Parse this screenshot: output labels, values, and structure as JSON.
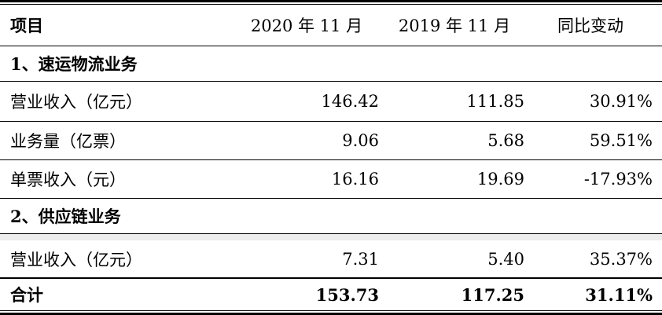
{
  "table": {
    "header": {
      "item": "项目",
      "col1": "2020 年 11 月",
      "col2": "2019 年 11 月",
      "col3": "同比变动"
    },
    "section1": {
      "title": "1、速运物流业务"
    },
    "rows1": [
      {
        "label": "营业收入（亿元）",
        "v2020": "146.42",
        "v2019": "111.85",
        "yoy": "30.91%"
      },
      {
        "label": "业务量（亿票）",
        "v2020": "9.06",
        "v2019": "5.68",
        "yoy": "59.51%"
      },
      {
        "label": "单票收入（元）",
        "v2020": "16.16",
        "v2019": "19.69",
        "yoy": "-17.93%"
      }
    ],
    "section2": {
      "title": "2、供应链业务"
    },
    "rows2": [
      {
        "label": "营业收入（亿元）",
        "v2020": "7.31",
        "v2019": "5.40",
        "yoy": "35.37%"
      }
    ],
    "total": {
      "label": "合计",
      "v2020": "153.73",
      "v2019": "117.25",
      "yoy": "31.11%"
    }
  }
}
